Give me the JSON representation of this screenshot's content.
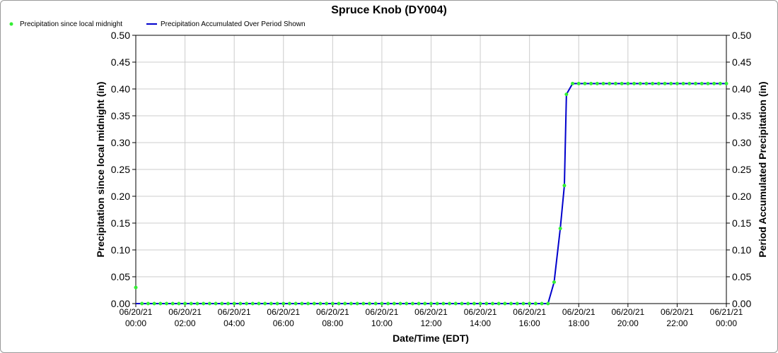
{
  "colors": {
    "background": "#ffffff",
    "grid": "#cccccc",
    "axis": "#000000",
    "points": "#33ee33",
    "line": "#0000cc"
  },
  "chart_data": {
    "type": "line",
    "title": "Spruce Knob (DY004)",
    "xlabel": "Date/Time (EDT)",
    "ylabel_left": "Precipitation since local midnight (in)",
    "ylabel_right": "Period Accumulated Precipitation (in)",
    "ylim": [
      0,
      0.5
    ],
    "xlim_hours": [
      0,
      24
    ],
    "y_ticks": [
      "0.00",
      "0.05",
      "0.10",
      "0.15",
      "0.20",
      "0.25",
      "0.30",
      "0.35",
      "0.40",
      "0.45",
      "0.50"
    ],
    "x_ticks": [
      {
        "date": "06/20/21",
        "time": "00:00"
      },
      {
        "date": "06/20/21",
        "time": "02:00"
      },
      {
        "date": "06/20/21",
        "time": "04:00"
      },
      {
        "date": "06/20/21",
        "time": "06:00"
      },
      {
        "date": "06/20/21",
        "time": "08:00"
      },
      {
        "date": "06/20/21",
        "time": "10:00"
      },
      {
        "date": "06/20/21",
        "time": "12:00"
      },
      {
        "date": "06/20/21",
        "time": "14:00"
      },
      {
        "date": "06/20/21",
        "time": "16:00"
      },
      {
        "date": "06/20/21",
        "time": "18:00"
      },
      {
        "date": "06/20/21",
        "time": "20:00"
      },
      {
        "date": "06/20/21",
        "time": "22:00"
      },
      {
        "date": "06/21/21",
        "time": "00:00"
      }
    ],
    "grid": true,
    "legend_position": "top-left",
    "legend": [
      {
        "label": "Precipitation since local midnight",
        "kind": "point"
      },
      {
        "label": "Precipitation Accumulated Over Period Shown",
        "kind": "line"
      }
    ],
    "series": [
      {
        "name": "Precipitation since local midnight",
        "kind": "point",
        "points": [
          {
            "t": "06/20/21 00:00",
            "v": 0.03
          },
          {
            "t": "06/20/21 00:15",
            "v": 0.0
          },
          {
            "t": "06/20/21 00:30",
            "v": 0.0
          },
          {
            "t": "06/20/21 00:45",
            "v": 0.0
          },
          {
            "t": "06/20/21 01:00",
            "v": 0.0
          },
          {
            "t": "06/20/21 01:15",
            "v": 0.0
          },
          {
            "t": "06/20/21 01:30",
            "v": 0.0
          },
          {
            "t": "06/20/21 01:45",
            "v": 0.0
          },
          {
            "t": "06/20/21 02:00",
            "v": 0.0
          },
          {
            "t": "06/20/21 02:15",
            "v": 0.0
          },
          {
            "t": "06/20/21 02:30",
            "v": 0.0
          },
          {
            "t": "06/20/21 02:45",
            "v": 0.0
          },
          {
            "t": "06/20/21 03:00",
            "v": 0.0
          },
          {
            "t": "06/20/21 03:15",
            "v": 0.0
          },
          {
            "t": "06/20/21 03:30",
            "v": 0.0
          },
          {
            "t": "06/20/21 03:45",
            "v": 0.0
          },
          {
            "t": "06/20/21 04:00",
            "v": 0.0
          },
          {
            "t": "06/20/21 04:15",
            "v": 0.0
          },
          {
            "t": "06/20/21 04:30",
            "v": 0.0
          },
          {
            "t": "06/20/21 04:45",
            "v": 0.0
          },
          {
            "t": "06/20/21 05:00",
            "v": 0.0
          },
          {
            "t": "06/20/21 05:15",
            "v": 0.0
          },
          {
            "t": "06/20/21 05:30",
            "v": 0.0
          },
          {
            "t": "06/20/21 05:45",
            "v": 0.0
          },
          {
            "t": "06/20/21 06:00",
            "v": 0.0
          },
          {
            "t": "06/20/21 06:15",
            "v": 0.0
          },
          {
            "t": "06/20/21 06:30",
            "v": 0.0
          },
          {
            "t": "06/20/21 06:45",
            "v": 0.0
          },
          {
            "t": "06/20/21 07:00",
            "v": 0.0
          },
          {
            "t": "06/20/21 07:15",
            "v": 0.0
          },
          {
            "t": "06/20/21 07:30",
            "v": 0.0
          },
          {
            "t": "06/20/21 07:45",
            "v": 0.0
          },
          {
            "t": "06/20/21 08:00",
            "v": 0.0
          },
          {
            "t": "06/20/21 08:15",
            "v": 0.0
          },
          {
            "t": "06/20/21 08:30",
            "v": 0.0
          },
          {
            "t": "06/20/21 08:45",
            "v": 0.0
          },
          {
            "t": "06/20/21 09:00",
            "v": 0.0
          },
          {
            "t": "06/20/21 09:15",
            "v": 0.0
          },
          {
            "t": "06/20/21 09:30",
            "v": 0.0
          },
          {
            "t": "06/20/21 09:45",
            "v": 0.0
          },
          {
            "t": "06/20/21 10:00",
            "v": 0.0
          },
          {
            "t": "06/20/21 10:15",
            "v": 0.0
          },
          {
            "t": "06/20/21 10:30",
            "v": 0.0
          },
          {
            "t": "06/20/21 10:45",
            "v": 0.0
          },
          {
            "t": "06/20/21 11:00",
            "v": 0.0
          },
          {
            "t": "06/20/21 11:15",
            "v": 0.0
          },
          {
            "t": "06/20/21 11:30",
            "v": 0.0
          },
          {
            "t": "06/20/21 11:45",
            "v": 0.0
          },
          {
            "t": "06/20/21 12:00",
            "v": 0.0
          },
          {
            "t": "06/20/21 12:15",
            "v": 0.0
          },
          {
            "t": "06/20/21 12:30",
            "v": 0.0
          },
          {
            "t": "06/20/21 12:45",
            "v": 0.0
          },
          {
            "t": "06/20/21 13:00",
            "v": 0.0
          },
          {
            "t": "06/20/21 13:15",
            "v": 0.0
          },
          {
            "t": "06/20/21 13:30",
            "v": 0.0
          },
          {
            "t": "06/20/21 13:45",
            "v": 0.0
          },
          {
            "t": "06/20/21 14:00",
            "v": 0.0
          },
          {
            "t": "06/20/21 14:15",
            "v": 0.0
          },
          {
            "t": "06/20/21 14:30",
            "v": 0.0
          },
          {
            "t": "06/20/21 14:45",
            "v": 0.0
          },
          {
            "t": "06/20/21 15:00",
            "v": 0.0
          },
          {
            "t": "06/20/21 15:15",
            "v": 0.0
          },
          {
            "t": "06/20/21 15:30",
            "v": 0.0
          },
          {
            "t": "06/20/21 15:45",
            "v": 0.0
          },
          {
            "t": "06/20/21 16:00",
            "v": 0.0
          },
          {
            "t": "06/20/21 16:15",
            "v": 0.0
          },
          {
            "t": "06/20/21 16:30",
            "v": 0.0
          },
          {
            "t": "06/20/21 16:45",
            "v": 0.0
          },
          {
            "t": "06/20/21 17:00",
            "v": 0.04
          },
          {
            "t": "06/20/21 17:15",
            "v": 0.14
          },
          {
            "t": "06/20/21 17:25",
            "v": 0.22
          },
          {
            "t": "06/20/21 17:30",
            "v": 0.39
          },
          {
            "t": "06/20/21 17:45",
            "v": 0.41
          },
          {
            "t": "06/20/21 18:00",
            "v": 0.41
          },
          {
            "t": "06/20/21 18:15",
            "v": 0.41
          },
          {
            "t": "06/20/21 18:30",
            "v": 0.41
          },
          {
            "t": "06/20/21 18:45",
            "v": 0.41
          },
          {
            "t": "06/20/21 19:00",
            "v": 0.41
          },
          {
            "t": "06/20/21 19:15",
            "v": 0.41
          },
          {
            "t": "06/20/21 19:30",
            "v": 0.41
          },
          {
            "t": "06/20/21 19:45",
            "v": 0.41
          },
          {
            "t": "06/20/21 20:00",
            "v": 0.41
          },
          {
            "t": "06/20/21 20:15",
            "v": 0.41
          },
          {
            "t": "06/20/21 20:30",
            "v": 0.41
          },
          {
            "t": "06/20/21 20:45",
            "v": 0.41
          },
          {
            "t": "06/20/21 21:00",
            "v": 0.41
          },
          {
            "t": "06/20/21 21:15",
            "v": 0.41
          },
          {
            "t": "06/20/21 21:30",
            "v": 0.41
          },
          {
            "t": "06/20/21 21:45",
            "v": 0.41
          },
          {
            "t": "06/20/21 22:00",
            "v": 0.41
          },
          {
            "t": "06/20/21 22:15",
            "v": 0.41
          },
          {
            "t": "06/20/21 22:30",
            "v": 0.41
          },
          {
            "t": "06/20/21 22:45",
            "v": 0.41
          },
          {
            "t": "06/20/21 23:00",
            "v": 0.41
          },
          {
            "t": "06/20/21 23:15",
            "v": 0.41
          },
          {
            "t": "06/20/21 23:30",
            "v": 0.41
          },
          {
            "t": "06/20/21 23:45",
            "v": 0.41
          },
          {
            "t": "06/21/21 00:00",
            "v": 0.41
          }
        ]
      },
      {
        "name": "Precipitation Accumulated Over Period Shown",
        "kind": "line",
        "points": [
          {
            "t": "06/20/21 00:00",
            "v": 0.0
          },
          {
            "t": "06/20/21 16:45",
            "v": 0.0
          },
          {
            "t": "06/20/21 17:00",
            "v": 0.04
          },
          {
            "t": "06/20/21 17:15",
            "v": 0.14
          },
          {
            "t": "06/20/21 17:25",
            "v": 0.22
          },
          {
            "t": "06/20/21 17:30",
            "v": 0.39
          },
          {
            "t": "06/20/21 17:45",
            "v": 0.41
          },
          {
            "t": "06/21/21 00:00",
            "v": 0.41
          }
        ]
      }
    ]
  }
}
